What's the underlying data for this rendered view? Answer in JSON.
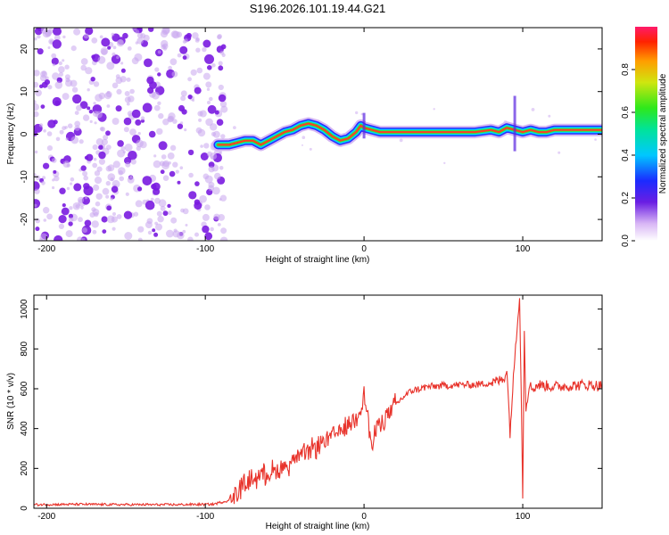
{
  "title": "S196.2026.101.19.44.G21",
  "colors": {
    "snr_line": "#e8332b",
    "dot_strong": "#7a1be0",
    "dot_light": "#c9a6ef",
    "axis": "#000000"
  },
  "chart_data": [
    {
      "id": "spectrogram",
      "type": "heatmap",
      "title": "S196.2026.101.19.44.G21",
      "xlabel": "Height of straight line (km)",
      "ylabel": "Frequency (Hz)",
      "xlim": [
        -208,
        150
      ],
      "ylim": [
        -25,
        25
      ],
      "xticks": [
        -200,
        -100,
        0,
        100
      ],
      "yticks": [
        -20,
        -10,
        0,
        10,
        20
      ],
      "noise_region_x": [
        -208,
        -92
      ],
      "ridge": {
        "x": [
          -92,
          -85,
          -80,
          -75,
          -70,
          -65,
          -60,
          -55,
          -50,
          -45,
          -40,
          -35,
          -30,
          -25,
          -20,
          -15,
          -10,
          -5,
          -2,
          0,
          5,
          10,
          20,
          30,
          40,
          50,
          60,
          70,
          80,
          85,
          90,
          95,
          100,
          105,
          110,
          115,
          120,
          130,
          140,
          150
        ],
        "y": [
          -2.5,
          -2.5,
          -2,
          -1.5,
          -1.5,
          -2.5,
          -1.5,
          -0.5,
          0.5,
          1,
          2,
          2.5,
          2,
          1,
          -0.5,
          -1.5,
          -1,
          0.5,
          2,
          1.5,
          1,
          0.5,
          0.5,
          0.5,
          0.5,
          0.5,
          0.5,
          0.5,
          1,
          0.5,
          1.5,
          1,
          0.5,
          1,
          0.5,
          0.5,
          1,
          1,
          1,
          1
        ]
      },
      "colorbar": {
        "label": "Normalized spectral amplitude",
        "range": [
          0,
          1
        ],
        "ticks": [
          "0.0",
          "0.2",
          "0.4",
          "0.6",
          "0.8"
        ]
      }
    },
    {
      "id": "snr",
      "type": "line",
      "xlabel": "Height of straight line (km)",
      "ylabel": "SNR (10 * v/v)",
      "xlim": [
        -208,
        150
      ],
      "ylim": [
        0,
        1070
      ],
      "xticks": [
        -200,
        -100,
        0,
        100
      ],
      "yticks": [
        0,
        200,
        400,
        600,
        800,
        1000
      ],
      "series": [
        {
          "name": "SNR",
          "x": [
            -208,
            -180,
            -150,
            -120,
            -95,
            -85,
            -80,
            -75,
            -70,
            -65,
            -60,
            -55,
            -50,
            -45,
            -40,
            -35,
            -30,
            -25,
            -20,
            -15,
            -10,
            -5,
            -2,
            0,
            2,
            5,
            8,
            10,
            15,
            20,
            25,
            30,
            40,
            50,
            60,
            70,
            80,
            85,
            88,
            90,
            92,
            95,
            97,
            98,
            99,
            100,
            101,
            102,
            104,
            106,
            110,
            120,
            130,
            140,
            150
          ],
          "y": [
            18,
            20,
            18,
            18,
            20,
            40,
            80,
            120,
            150,
            170,
            180,
            190,
            210,
            240,
            260,
            280,
            310,
            340,
            360,
            390,
            420,
            460,
            510,
            580,
            480,
            300,
            400,
            440,
            470,
            520,
            560,
            590,
            610,
            615,
            620,
            620,
            630,
            640,
            650,
            700,
            380,
            760,
            980,
            1060,
            600,
            70,
            900,
            500,
            620,
            600,
            620,
            610,
            615,
            620,
            615
          ]
        }
      ]
    }
  ]
}
